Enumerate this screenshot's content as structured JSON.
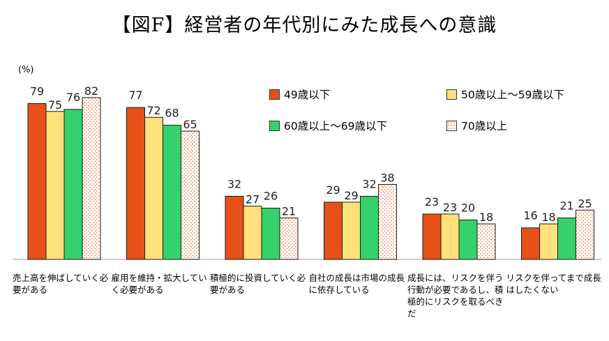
{
  "chart_data": {
    "type": "bar",
    "title": "【図F】経営者の年代別にみた成長への意識",
    "ylabel": "(%)",
    "ylim": [
      0,
      100
    ],
    "grid": false,
    "legend_position": "top-right",
    "categories": [
      "売上高を伸ばしていく必要がある",
      "雇用を維持・拡大していく必要がある",
      "積極的に投資していく必要がある",
      "自社の成長は市場の成長に依存している",
      "成長には、リスクを伴う行動が必要であるし、積極的にリスクを取るべきだ",
      "リスクを伴ってまで成長はしたくない"
    ],
    "series": [
      {
        "name": "49歳以下",
        "values": [
          79,
          77,
          32,
          29,
          23,
          16
        ],
        "color": "#e8501a",
        "pattern": "solid"
      },
      {
        "name": "50歳以上～59歳以下",
        "values": [
          75,
          72,
          27,
          29,
          23,
          18
        ],
        "color": "#ffe07a",
        "pattern": "solid"
      },
      {
        "name": "60歳以上～69歳以下",
        "values": [
          76,
          68,
          26,
          32,
          20,
          21
        ],
        "color": "#35d16a",
        "pattern": "solid"
      },
      {
        "name": "70歳以上",
        "values": [
          82,
          65,
          21,
          38,
          18,
          25
        ],
        "color": "#f4a07a",
        "pattern": "dotted"
      }
    ]
  }
}
